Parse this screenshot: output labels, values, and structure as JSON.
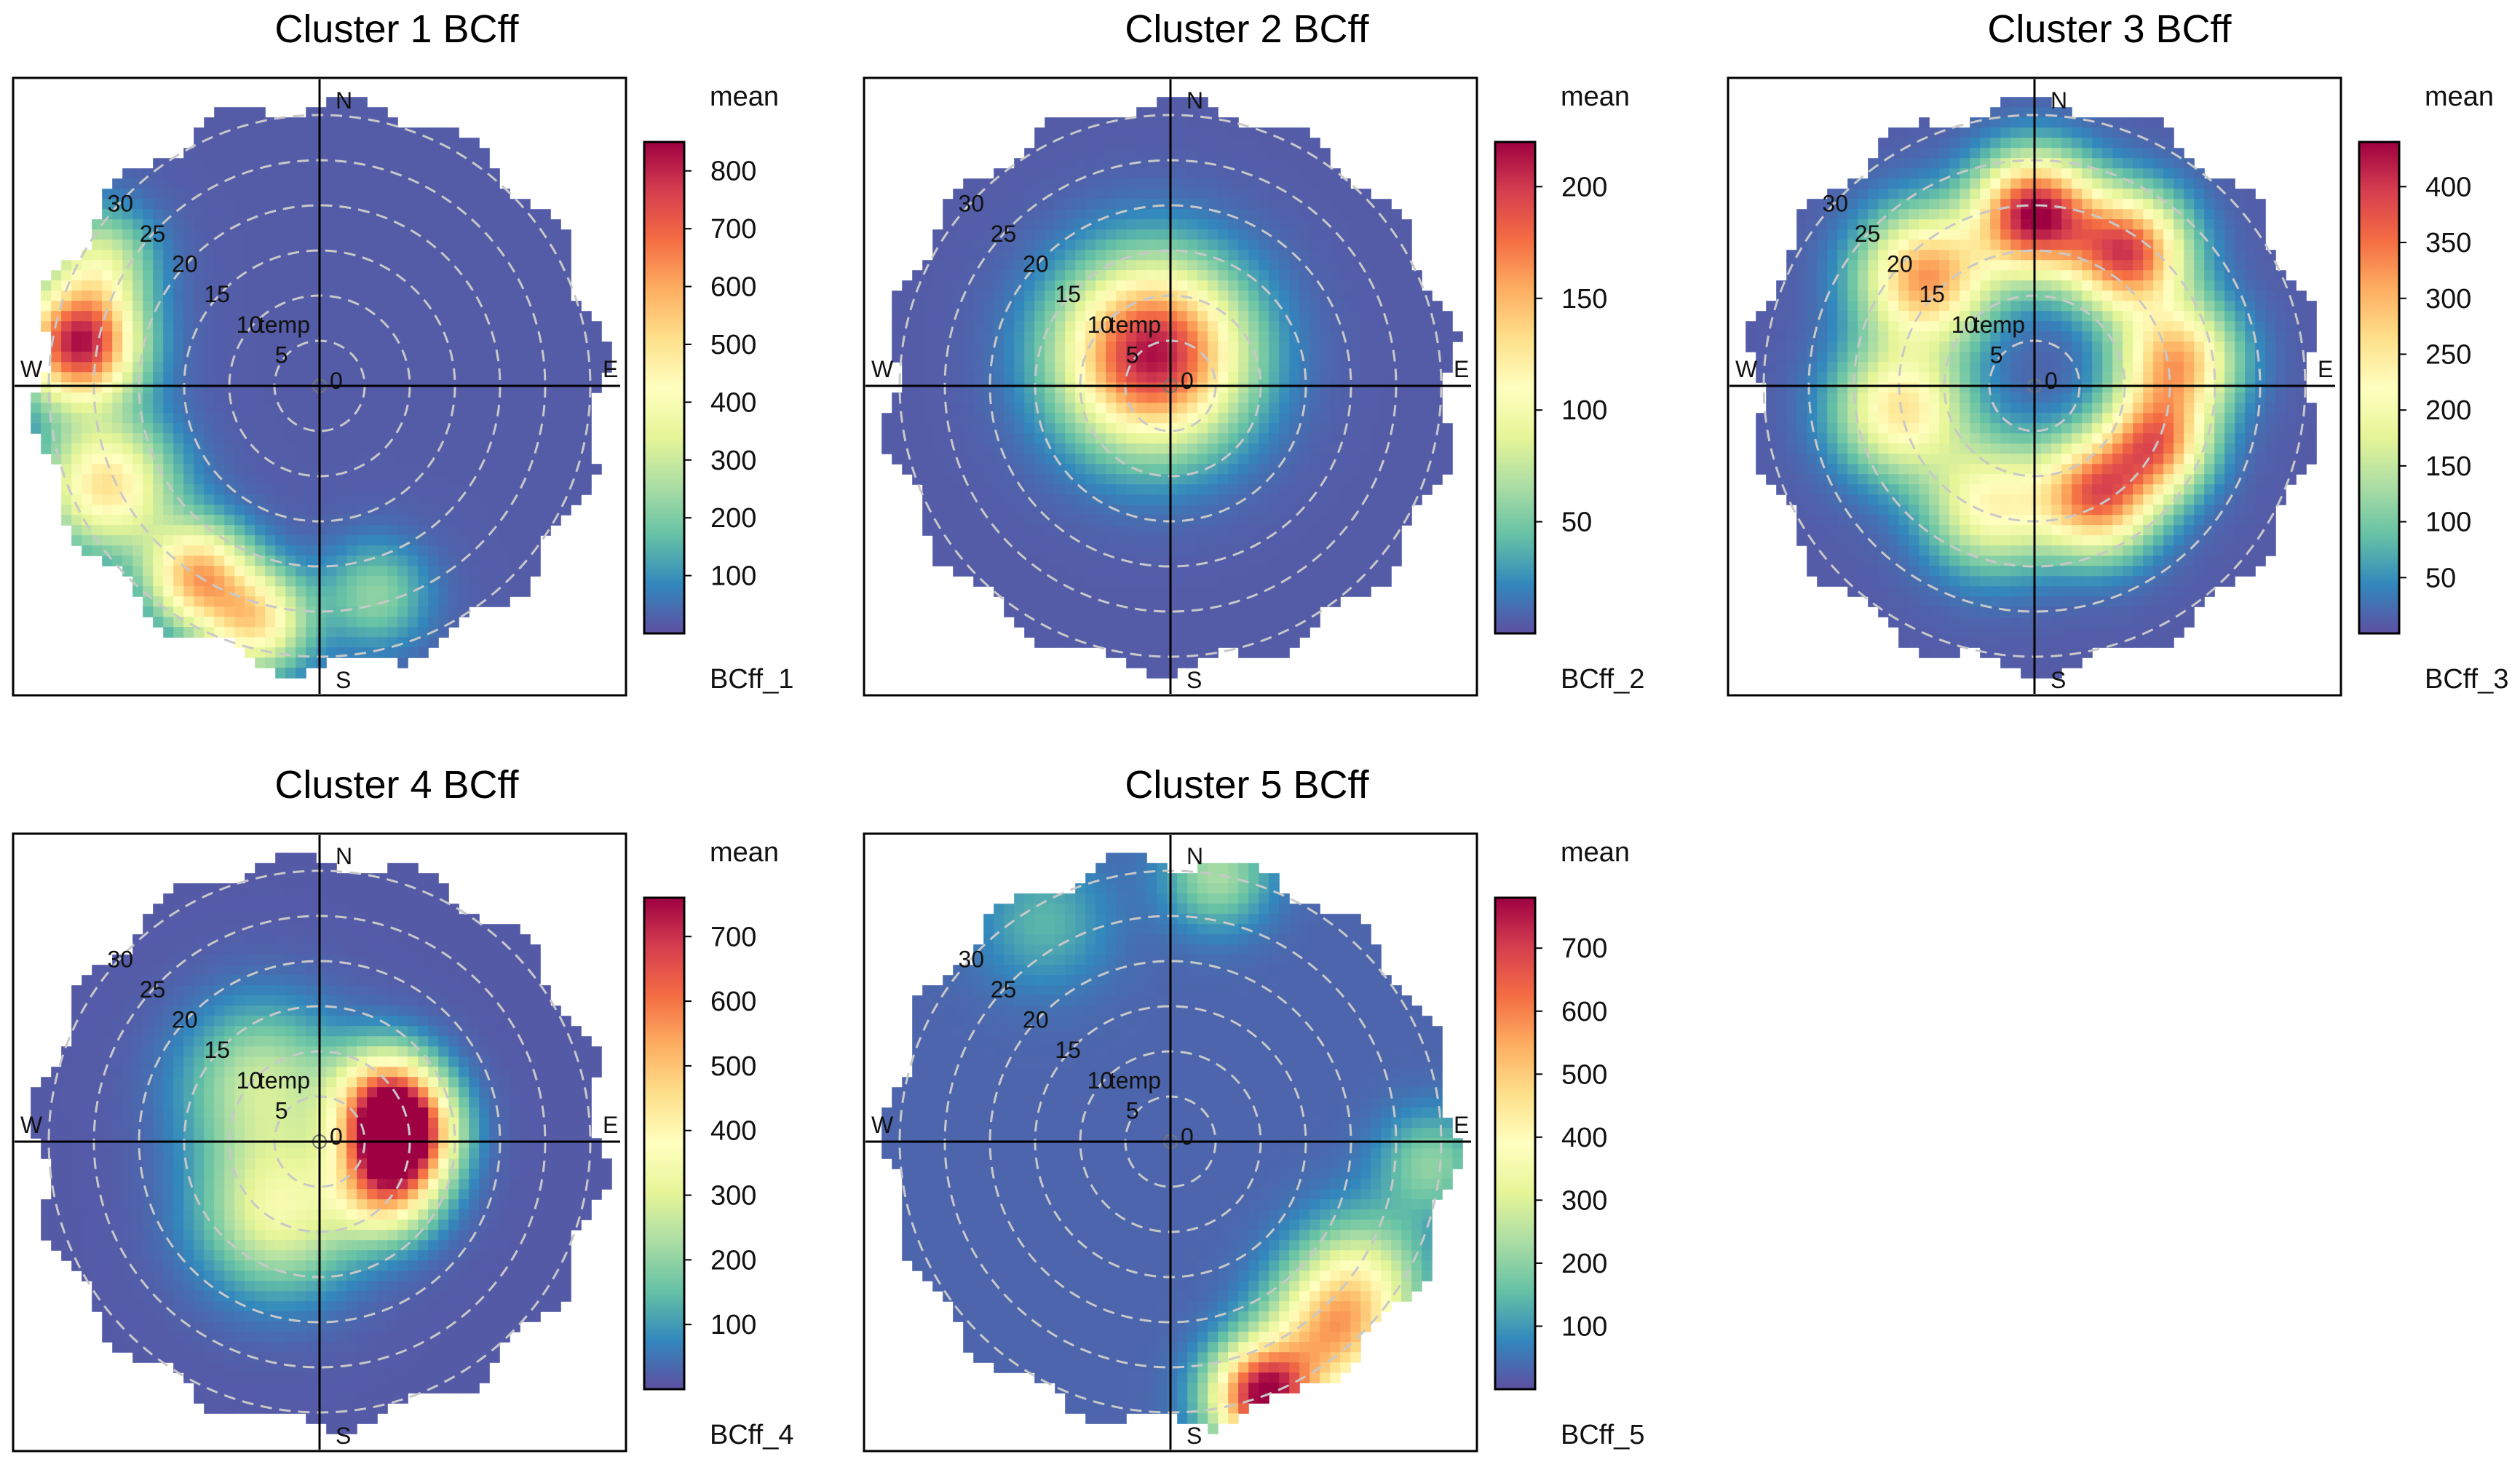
{
  "chart_data": [
    {
      "type": "heatmap",
      "subtype": "polar",
      "title": "Cluster 1 BCff",
      "legend_header": "mean",
      "legend_footer": "BCff_1",
      "color_range": [
        0,
        850
      ],
      "color_ticks": [
        100,
        200,
        300,
        400,
        500,
        600,
        700,
        800
      ],
      "radial_ticks": [
        "5",
        "10",
        "15",
        "20",
        "25",
        "30"
      ],
      "radial_label": "temp",
      "center_label": "0",
      "max_radius": 32,
      "directions": [
        "N",
        "E",
        "S",
        "W"
      ],
      "hotspots": [
        {
          "direction_deg": 280,
          "radius": 27,
          "spread": 4.5,
          "value": 820
        },
        {
          "direction_deg": 245,
          "radius": 26,
          "spread": 5,
          "value": 500
        },
        {
          "direction_deg": 213,
          "radius": 25,
          "spread": 4,
          "value": 560
        },
        {
          "direction_deg": 195,
          "radius": 27,
          "spread": 4,
          "value": 480
        },
        {
          "direction_deg": 300,
          "radius": 28,
          "spread": 4,
          "value": 300
        },
        {
          "direction_deg": 165,
          "radius": 24,
          "spread": 4,
          "value": 220
        }
      ],
      "background": 20
    },
    {
      "type": "heatmap",
      "subtype": "polar",
      "title": "Cluster 2 BCff",
      "legend_header": "mean",
      "legend_footer": "BCff_2",
      "color_range": [
        0,
        220
      ],
      "color_ticks": [
        50,
        100,
        150,
        200
      ],
      "radial_ticks": [
        "5",
        "10",
        "15",
        "20",
        "25",
        "30"
      ],
      "radial_label": "temp",
      "center_label": "0",
      "max_radius": 32,
      "directions": [
        "N",
        "E",
        "S",
        "W"
      ],
      "hotspots": [
        {
          "direction_deg": 330,
          "radius": 4,
          "spread": 7,
          "value": 215
        }
      ],
      "background": 5
    },
    {
      "type": "heatmap",
      "subtype": "polar",
      "title": "Cluster 3 BCff",
      "legend_header": "mean",
      "legend_footer": "BCff_3",
      "color_range": [
        0,
        440
      ],
      "color_ticks": [
        50,
        100,
        150,
        200,
        250,
        300,
        350,
        400
      ],
      "radial_ticks": [
        "5",
        "10",
        "15",
        "20",
        "25",
        "30"
      ],
      "radial_label": "temp",
      "center_label": "0",
      "max_radius": 32,
      "directions": [
        "N",
        "E",
        "S",
        "W"
      ],
      "hotspots": [
        {
          "direction_deg": 0,
          "radius": 19,
          "spread": 4.5,
          "value": 430
        },
        {
          "direction_deg": 35,
          "radius": 18,
          "spread": 4.5,
          "value": 380
        },
        {
          "direction_deg": 80,
          "radius": 16,
          "spread": 4.5,
          "value": 300
        },
        {
          "direction_deg": 115,
          "radius": 15,
          "spread": 4,
          "value": 300
        },
        {
          "direction_deg": 150,
          "radius": 14,
          "spread": 4.5,
          "value": 350
        },
        {
          "direction_deg": 200,
          "radius": 14,
          "spread": 5,
          "value": 220
        },
        {
          "direction_deg": 260,
          "radius": 15,
          "spread": 5,
          "value": 250
        },
        {
          "direction_deg": 315,
          "radius": 17,
          "spread": 5,
          "value": 320
        }
      ],
      "background": 10
    },
    {
      "type": "heatmap",
      "subtype": "polar",
      "title": "Cluster 4 BCff",
      "legend_header": "mean",
      "legend_footer": "BCff_4",
      "color_range": [
        0,
        760
      ],
      "color_ticks": [
        100,
        200,
        300,
        400,
        500,
        600,
        700
      ],
      "radial_ticks": [
        "5",
        "10",
        "15",
        "20",
        "25",
        "30"
      ],
      "radial_label": "temp",
      "center_label": "0",
      "max_radius": 32,
      "directions": [
        "N",
        "E",
        "S",
        "W"
      ],
      "hotspots": [
        {
          "direction_deg": 85,
          "radius": 9,
          "spread": 4,
          "value": 750
        },
        {
          "direction_deg": 55,
          "radius": 9,
          "spread": 4,
          "value": 420
        },
        {
          "direction_deg": 125,
          "radius": 9,
          "spread": 4,
          "value": 420
        },
        {
          "direction_deg": 210,
          "radius": 9,
          "spread": 6,
          "value": 330
        },
        {
          "direction_deg": 315,
          "radius": 9,
          "spread": 6,
          "value": 260
        }
      ],
      "background": 15
    },
    {
      "type": "heatmap",
      "subtype": "polar",
      "title": "Cluster 5 BCff",
      "legend_header": "mean",
      "legend_footer": "BCff_5",
      "color_range": [
        0,
        780
      ],
      "color_ticks": [
        100,
        200,
        300,
        400,
        500,
        600,
        700
      ],
      "radial_ticks": [
        "5",
        "10",
        "15",
        "20",
        "25",
        "30"
      ],
      "radial_label": "temp",
      "center_label": "0",
      "max_radius": 32,
      "directions": [
        "N",
        "E",
        "S",
        "W"
      ],
      "hotspots": [
        {
          "direction_deg": 160,
          "radius": 30,
          "spread": 4,
          "value": 760
        },
        {
          "direction_deg": 140,
          "radius": 28,
          "spread": 5,
          "value": 460
        },
        {
          "direction_deg": 125,
          "radius": 26,
          "spread": 5,
          "value": 280
        },
        {
          "direction_deg": 10,
          "radius": 30,
          "spread": 4,
          "value": 230
        },
        {
          "direction_deg": 95,
          "radius": 29,
          "spread": 4,
          "value": 200
        },
        {
          "direction_deg": 330,
          "radius": 28,
          "spread": 5,
          "value": 140
        }
      ],
      "background": 30
    }
  ]
}
